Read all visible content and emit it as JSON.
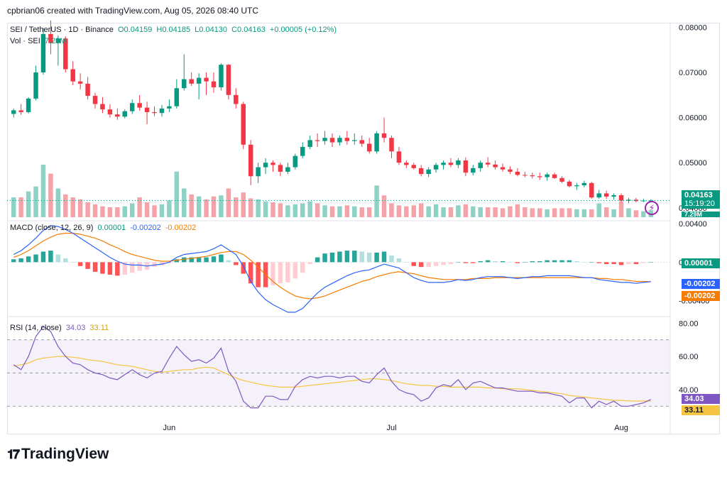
{
  "header": {
    "attribution": "cpbrian06 created with TradingView.com, Aug 05, 2026 08:40 UTC"
  },
  "main_legend": {
    "symbol": "SEI / TetherUS · 1D · Binance",
    "open": "O0.04159",
    "high": "H0.04185",
    "low": "L0.04130",
    "close": "C0.04163",
    "change": "+0.00005 (+0.12%)",
    "vol_label": "Vol · SEI",
    "vol_value": "7.29M"
  },
  "macd_legend": {
    "label": "MACD (close, 12, 26, 9)",
    "hist": "0.00001",
    "macd": "-0.00202",
    "signal": "-0.00202"
  },
  "rsi_legend": {
    "label": "RSI (14, close)",
    "rsi": "34.03",
    "ma": "33.11"
  },
  "price_tags": {
    "last": "0.04163",
    "countdown": "15:19:20",
    "vol": "7.29M",
    "macd_hist": "0.00001",
    "macd": "-0.00202",
    "signal": "-0.00202",
    "rsi": "34.03",
    "rsi_ma": "33.11"
  },
  "logo": {
    "text": "TradingView"
  },
  "colors": {
    "up": "#089981",
    "down": "#f23645",
    "up_vol": "#8ed1c5",
    "down_vol": "#f5a3a9",
    "macd": "#2962ff",
    "signal": "#f57c00",
    "rsi": "#7e57c2",
    "rsi_ma": "#f5c542",
    "rsi_band": "#ede7f6"
  },
  "chart_data": {
    "type": "candlestick",
    "x_labels": [
      "Jun",
      "Jul",
      "Aug"
    ],
    "price_axis": {
      "ticks": [
        "0.08000",
        "0.07000",
        "0.06000",
        "0.05000",
        "0.04000"
      ],
      "ylim": [
        0.0373,
        0.081
      ]
    },
    "macd_axis": {
      "ticks": [
        "0.00400",
        "0.00000",
        "-0.00400"
      ],
      "ylim": [
        -0.0055,
        0.0043
      ]
    },
    "rsi_axis": {
      "ticks": [
        "80.00",
        "60.00",
        "40.00"
      ],
      "ylim": [
        13,
        84
      ],
      "bands": [
        70,
        50,
        30
      ]
    },
    "candles": [
      [
        0.0608,
        0.062,
        0.06,
        0.0616
      ],
      [
        0.0616,
        0.063,
        0.0606,
        0.0612
      ],
      [
        0.0612,
        0.0645,
        0.0609,
        0.0642
      ],
      [
        0.0642,
        0.0715,
        0.0638,
        0.07
      ],
      [
        0.07,
        0.0798,
        0.0695,
        0.0785
      ],
      [
        0.0785,
        0.0815,
        0.074,
        0.0765
      ],
      [
        0.0765,
        0.0782,
        0.0715,
        0.0775
      ],
      [
        0.0775,
        0.078,
        0.07,
        0.0707
      ],
      [
        0.0707,
        0.0725,
        0.0672,
        0.068
      ],
      [
        0.068,
        0.0698,
        0.0662,
        0.0675
      ],
      [
        0.0675,
        0.069,
        0.064,
        0.0648
      ],
      [
        0.0648,
        0.0655,
        0.062,
        0.063
      ],
      [
        0.063,
        0.0645,
        0.061,
        0.0618
      ],
      [
        0.0618,
        0.063,
        0.06,
        0.0607
      ],
      [
        0.0607,
        0.062,
        0.0595,
        0.0602
      ],
      [
        0.0602,
        0.0618,
        0.0598,
        0.0614
      ],
      [
        0.0614,
        0.064,
        0.0608,
        0.0632
      ],
      [
        0.0632,
        0.065,
        0.0615,
        0.0622
      ],
      [
        0.0622,
        0.0635,
        0.0585,
        0.0612
      ],
      [
        0.0612,
        0.0625,
        0.0603,
        0.061
      ],
      [
        0.061,
        0.0628,
        0.0602,
        0.062
      ],
      [
        0.062,
        0.064,
        0.0612,
        0.0625
      ],
      [
        0.0625,
        0.0685,
        0.062,
        0.0665
      ],
      [
        0.0665,
        0.074,
        0.066,
        0.0685
      ],
      [
        0.0685,
        0.07,
        0.067,
        0.0675
      ],
      [
        0.0675,
        0.0698,
        0.064,
        0.0688
      ],
      [
        0.0688,
        0.07,
        0.065,
        0.068
      ],
      [
        0.068,
        0.07,
        0.0655,
        0.0667
      ],
      [
        0.0667,
        0.072,
        0.066,
        0.0717
      ],
      [
        0.0717,
        0.0718,
        0.064,
        0.065
      ],
      [
        0.065,
        0.0665,
        0.062,
        0.063
      ],
      [
        0.063,
        0.0635,
        0.053,
        0.054
      ],
      [
        0.054,
        0.055,
        0.045,
        0.047
      ],
      [
        0.047,
        0.05,
        0.0455,
        0.049
      ],
      [
        0.049,
        0.051,
        0.0475,
        0.05
      ],
      [
        0.05,
        0.0505,
        0.048,
        0.0495
      ],
      [
        0.0495,
        0.05,
        0.047,
        0.048
      ],
      [
        0.048,
        0.05,
        0.0475,
        0.049
      ],
      [
        0.049,
        0.052,
        0.0485,
        0.0515
      ],
      [
        0.0515,
        0.0545,
        0.051,
        0.0535
      ],
      [
        0.0535,
        0.056,
        0.053,
        0.055
      ],
      [
        0.055,
        0.0565,
        0.0535,
        0.0548
      ],
      [
        0.0548,
        0.057,
        0.054,
        0.0555
      ],
      [
        0.0555,
        0.0565,
        0.0535,
        0.0545
      ],
      [
        0.0545,
        0.056,
        0.0538,
        0.0555
      ],
      [
        0.0555,
        0.057,
        0.054,
        0.0548
      ],
      [
        0.0548,
        0.0565,
        0.054,
        0.055
      ],
      [
        0.055,
        0.056,
        0.0535,
        0.0542
      ],
      [
        0.0542,
        0.0555,
        0.052,
        0.0525
      ],
      [
        0.0525,
        0.057,
        0.052,
        0.0565
      ],
      [
        0.0565,
        0.06,
        0.0545,
        0.0555
      ],
      [
        0.0555,
        0.056,
        0.051,
        0.0525
      ],
      [
        0.0525,
        0.0535,
        0.0495,
        0.05
      ],
      [
        0.05,
        0.0505,
        0.0488,
        0.0495
      ],
      [
        0.0495,
        0.05,
        0.0485,
        0.0488
      ],
      [
        0.0488,
        0.0495,
        0.047,
        0.0475
      ],
      [
        0.0475,
        0.049,
        0.0468,
        0.0485
      ],
      [
        0.0485,
        0.05,
        0.0478,
        0.0495
      ],
      [
        0.0495,
        0.0505,
        0.0485,
        0.05
      ],
      [
        0.05,
        0.051,
        0.049,
        0.0495
      ],
      [
        0.0495,
        0.051,
        0.0488,
        0.0505
      ],
      [
        0.0505,
        0.0512,
        0.047,
        0.0478
      ],
      [
        0.0478,
        0.0495,
        0.0472,
        0.0488
      ],
      [
        0.0488,
        0.0505,
        0.048,
        0.05
      ],
      [
        0.05,
        0.0512,
        0.049,
        0.0496
      ],
      [
        0.0496,
        0.0505,
        0.0485,
        0.049
      ],
      [
        0.049,
        0.0498,
        0.048,
        0.0485
      ],
      [
        0.0485,
        0.0492,
        0.0475,
        0.048
      ],
      [
        0.048,
        0.0488,
        0.047,
        0.0473
      ],
      [
        0.0473,
        0.048,
        0.0468,
        0.0472
      ],
      [
        0.0472,
        0.0478,
        0.0465,
        0.047
      ],
      [
        0.047,
        0.0478,
        0.0462,
        0.0468
      ],
      [
        0.0468,
        0.0478,
        0.046,
        0.0474
      ],
      [
        0.0474,
        0.0478,
        0.0464,
        0.0466
      ],
      [
        0.0466,
        0.047,
        0.0455,
        0.0458
      ],
      [
        0.0458,
        0.0462,
        0.0445,
        0.0448
      ],
      [
        0.0448,
        0.0455,
        0.044,
        0.045
      ],
      [
        0.045,
        0.046,
        0.0445,
        0.0455
      ],
      [
        0.0455,
        0.0458,
        0.042,
        0.0423
      ],
      [
        0.0423,
        0.044,
        0.042,
        0.0432
      ],
      [
        0.0432,
        0.0438,
        0.042,
        0.0425
      ],
      [
        0.0425,
        0.0432,
        0.0418,
        0.0428
      ],
      [
        0.0428,
        0.0432,
        0.0413,
        0.0416
      ],
      [
        0.0416,
        0.0422,
        0.041,
        0.0418
      ],
      [
        0.0418,
        0.0422,
        0.0412,
        0.0415
      ],
      [
        0.0415,
        0.042,
        0.0413,
        0.0416
      ],
      [
        0.0416,
        0.0419,
        0.0413,
        0.04163
      ]
    ],
    "volume": [
      2,
      2,
      2.6,
      3.1,
      5.3,
      4.4,
      2.9,
      2.3,
      2,
      1.8,
      1.5,
      1.3,
      1.1,
      1,
      1,
      1.1,
      1.4,
      2,
      1.5,
      1.2,
      1.3,
      1.7,
      4.6,
      2.9,
      2.3,
      2.1,
      1.8,
      2.1,
      2.2,
      2.9,
      2,
      2.5,
      1.9,
      1.8,
      1.6,
      1.5,
      1.4,
      1.2,
      1.3,
      1.4,
      1.6,
      1.4,
      1.2,
      1.1,
      1.1,
      1.2,
      1.1,
      1,
      1,
      3.2,
      2.2,
      1.4,
      1.2,
      1.1,
      1.2,
      1.4,
      1.1,
      1.3,
      1,
      1,
      1.2,
      1.3,
      1.1,
      1,
      1,
      1,
      0.9,
      1.1,
      1.3,
      1,
      0.9,
      0.9,
      0.8,
      0.9,
      0.9,
      0.9,
      0.8,
      0.8,
      0.8,
      1.4,
      1,
      0.8,
      1.6,
      0.9,
      0.7,
      0.6,
      0.7
    ],
    "macd": [
      0.0008,
      0.0012,
      0.0018,
      0.0025,
      0.0033,
      0.0038,
      0.0037,
      0.0034,
      0.003,
      0.0025,
      0.002,
      0.0015,
      0.001,
      0.0005,
      0.0001,
      -0.0002,
      -0.0003,
      -0.0003,
      -0.0004,
      -0.0003,
      -0.0002,
      0,
      0.0005,
      0.0008,
      0.0009,
      0.001,
      0.0011,
      0.0014,
      0.0018,
      0.0013,
      0.0008,
      -0.0004,
      -0.002,
      -0.0031,
      -0.0039,
      -0.0044,
      -0.0048,
      -0.0052,
      -0.0052,
      -0.0048,
      -0.004,
      -0.0032,
      -0.0026,
      -0.0022,
      -0.0018,
      -0.0014,
      -0.0011,
      -0.0009,
      -0.0008,
      -0.0005,
      -0.0002,
      -0.0004,
      -0.0006,
      -0.0011,
      -0.0016,
      -0.0019,
      -0.0021,
      -0.0021,
      -0.0021,
      -0.002,
      -0.0018,
      -0.0019,
      -0.0018,
      -0.0016,
      -0.0015,
      -0.0015,
      -0.0015,
      -0.0016,
      -0.0017,
      -0.0016,
      -0.0015,
      -0.0015,
      -0.0014,
      -0.0014,
      -0.0014,
      -0.0014,
      -0.0015,
      -0.0016,
      -0.0016,
      -0.0018,
      -0.0019,
      -0.002,
      -0.0021,
      -0.0021,
      -0.0022,
      -0.0021,
      -0.00202
    ],
    "signal": [
      0.0005,
      0.0008,
      0.0012,
      0.0017,
      0.0022,
      0.0026,
      0.0029,
      0.003,
      0.003,
      0.0029,
      0.0027,
      0.0025,
      0.0022,
      0.0018,
      0.0015,
      0.0011,
      0.0008,
      0.0006,
      0.0004,
      0.0002,
      0.0001,
      0.0001,
      0.0002,
      0.0003,
      0.0004,
      0.0005,
      0.0006,
      0.0008,
      0.001,
      0.0011,
      0.0011,
      0.0008,
      0.0002,
      -0.0005,
      -0.0013,
      -0.002,
      -0.0026,
      -0.0031,
      -0.0035,
      -0.0037,
      -0.0038,
      -0.0037,
      -0.0035,
      -0.0032,
      -0.0029,
      -0.0026,
      -0.0023,
      -0.002,
      -0.0018,
      -0.0015,
      -0.0013,
      -0.0011,
      -0.001,
      -0.0011,
      -0.0012,
      -0.0014,
      -0.0016,
      -0.0017,
      -0.0018,
      -0.0018,
      -0.0018,
      -0.0018,
      -0.0017,
      -0.0017,
      -0.0017,
      -0.0016,
      -0.0016,
      -0.0016,
      -0.0016,
      -0.0016,
      -0.0016,
      -0.0016,
      -0.0016,
      -0.0016,
      -0.0016,
      -0.0016,
      -0.0016,
      -0.0016,
      -0.0016,
      -0.0017,
      -0.0017,
      -0.0018,
      -0.0018,
      -0.0019,
      -0.002,
      -0.002,
      -0.00202
    ],
    "rsi": [
      55,
      52,
      60,
      72,
      78,
      75,
      66,
      60,
      56,
      55,
      52,
      50,
      49,
      47,
      46,
      49,
      52,
      49,
      47,
      50,
      51,
      59,
      66,
      61,
      57,
      58,
      56,
      59,
      65,
      51,
      45,
      33,
      29,
      29,
      36,
      36,
      34,
      34,
      42,
      46,
      48,
      47,
      48,
      48,
      47,
      48,
      48,
      45,
      44,
      49,
      53,
      45,
      40,
      38,
      37,
      33,
      35,
      41,
      43,
      42,
      46,
      40,
      44,
      45,
      43,
      41,
      41,
      40,
      39,
      39,
      39,
      38,
      38,
      37,
      36,
      32,
      35,
      35,
      29,
      33,
      31,
      33,
      30,
      30,
      31,
      32,
      34.03
    ],
    "rsi_ma": [
      54,
      55,
      56,
      58,
      59,
      59.5,
      60,
      60,
      59.5,
      59,
      58,
      57.5,
      57,
      56,
      55,
      54.5,
      54,
      53,
      52,
      51,
      50.5,
      51,
      51.5,
      52,
      52,
      53,
      53.5,
      53,
      51,
      49,
      47,
      45.5,
      44.5,
      43.5,
      42.5,
      42,
      41.5,
      41.5,
      41.5,
      42,
      42.5,
      43,
      43.5,
      44,
      44.5,
      45,
      45.5,
      46,
      46.5,
      46.5,
      46,
      45.5,
      44.5,
      43.5,
      43,
      42.5,
      42.5,
      42,
      42,
      41.5,
      41.5,
      41.5,
      41.5,
      41.5,
      41,
      41,
      40.5,
      40.5,
      40.5,
      40,
      39.5,
      39,
      38.5,
      38,
      37.5,
      36.5,
      36,
      35.5,
      35,
      34.5,
      34,
      33.5,
      33.5,
      33.2,
      33.1,
      33.1,
      33.11
    ]
  }
}
